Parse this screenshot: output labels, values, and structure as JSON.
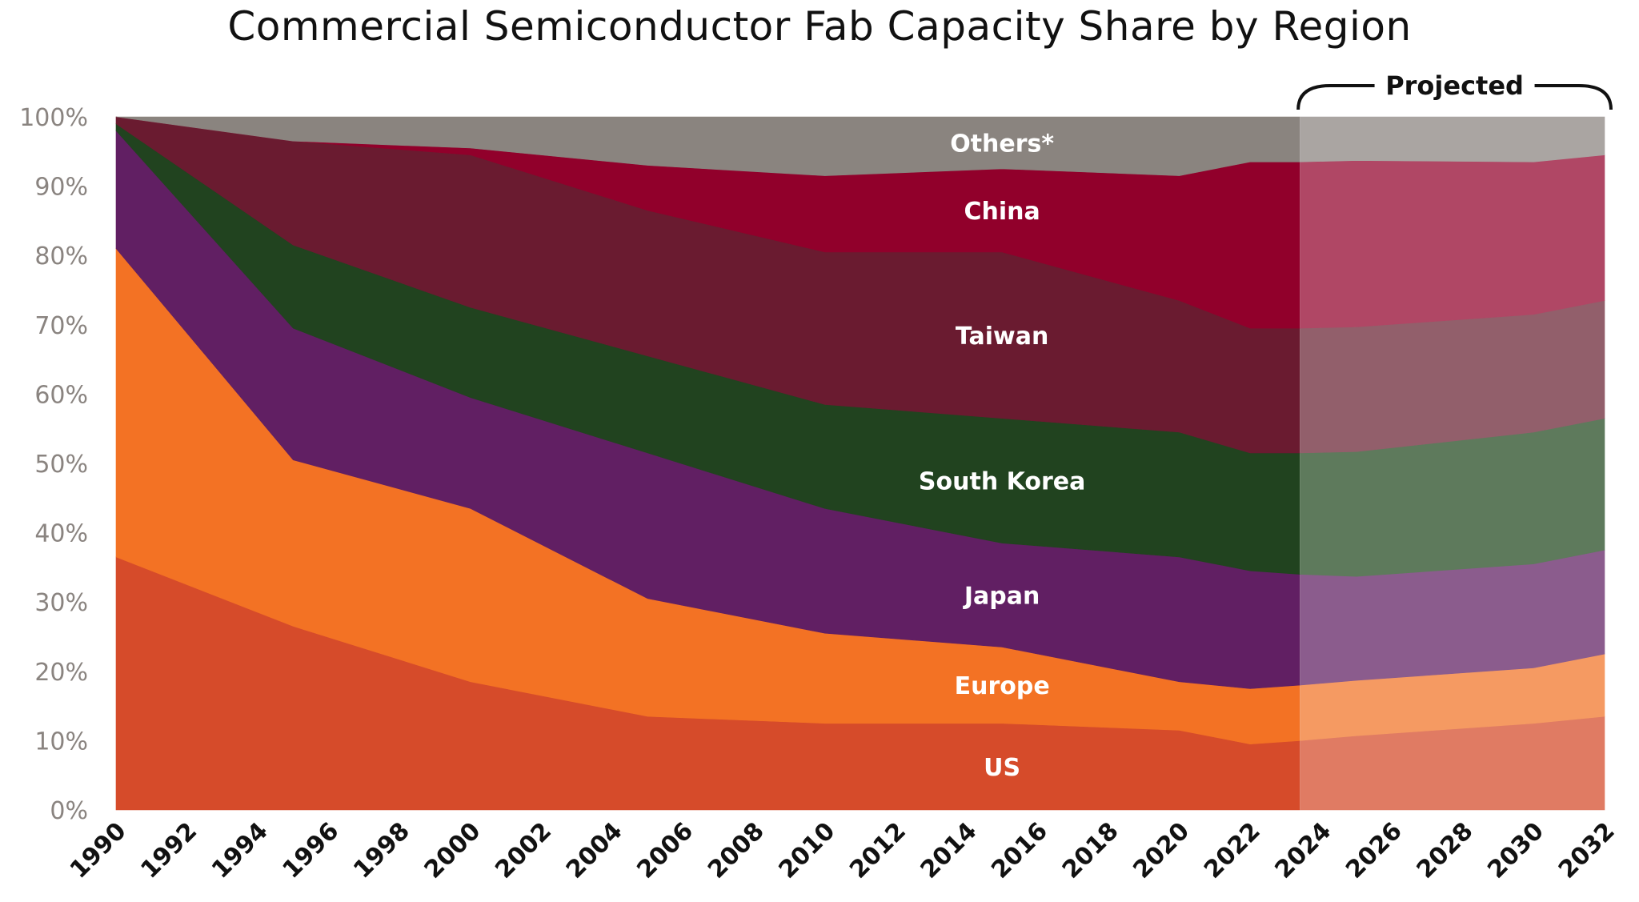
{
  "chart_data": {
    "type": "area",
    "stacked": true,
    "percent": true,
    "title": "Commercial Semiconductor Fab Capacity Share by Region",
    "xlabel": "",
    "ylabel": "",
    "ylim": [
      0,
      100
    ],
    "xlim": [
      1990,
      2032
    ],
    "x_ticks": [
      "1990",
      "1992",
      "1994",
      "1996",
      "1998",
      "2000",
      "2002",
      "2004",
      "2006",
      "2008",
      "2010",
      "2012",
      "2014",
      "2016",
      "2018",
      "2020",
      "2022",
      "2024",
      "2026",
      "2028",
      "2030",
      "2032"
    ],
    "y_ticks": [
      "0%",
      "10%",
      "20%",
      "30%",
      "40%",
      "50%",
      "60%",
      "70%",
      "80%",
      "90%",
      "100%"
    ],
    "x": [
      1990,
      1995,
      2000,
      2005,
      2010,
      2015,
      2020,
      2022,
      2023.4,
      2025,
      2030,
      2032
    ],
    "projection": {
      "start": 2023.4,
      "end": 2032,
      "label": "Projected"
    },
    "series": [
      {
        "name": "US",
        "label": "US",
        "color": "#d64b2a",
        "projected_color": "#e07b63",
        "values": [
          36.5,
          26.5,
          18.5,
          13.5,
          12.5,
          12.5,
          11.5,
          9.5,
          10,
          10.7,
          12.5,
          13.5
        ]
      },
      {
        "name": "Europe",
        "label": "Europe",
        "color": "#f37224",
        "projected_color": "#f59a62",
        "values": [
          44.5,
          24,
          25,
          17,
          13,
          11,
          7,
          8,
          8,
          8,
          8,
          9
        ]
      },
      {
        "name": "Japan",
        "label": "Japan",
        "color": "#611f63",
        "projected_color": "#8b5c8d",
        "values": [
          17,
          19,
          16,
          21,
          18,
          15,
          18,
          17,
          16,
          15,
          15,
          15
        ]
      },
      {
        "name": "South Korea",
        "label": "South Korea",
        "color": "#21431f",
        "projected_color": "#5e7a5c",
        "values": [
          1,
          12,
          13,
          14,
          15,
          18,
          18,
          17,
          17.5,
          18,
          19,
          19
        ]
      },
      {
        "name": "Taiwan",
        "label": "Taiwan",
        "color": "#6a1b30",
        "projected_color": "#925f6b",
        "values": [
          1,
          15,
          22,
          21,
          22,
          24,
          19,
          18,
          18,
          18,
          17,
          17
        ]
      },
      {
        "name": "China",
        "label": "China",
        "color": "#91002b",
        "projected_color": "#b04765",
        "values": [
          0,
          0,
          1,
          6.5,
          11,
          12,
          18,
          24,
          24,
          24,
          22,
          21
        ]
      },
      {
        "name": "Others",
        "label": "Others*",
        "color": "#8a847f",
        "projected_color": "#aaa5a2",
        "values": [
          0,
          3.5,
          4.5,
          7,
          8.5,
          7.5,
          8.5,
          6.5,
          6.5,
          6.3,
          6.5,
          5.5
        ]
      }
    ]
  }
}
